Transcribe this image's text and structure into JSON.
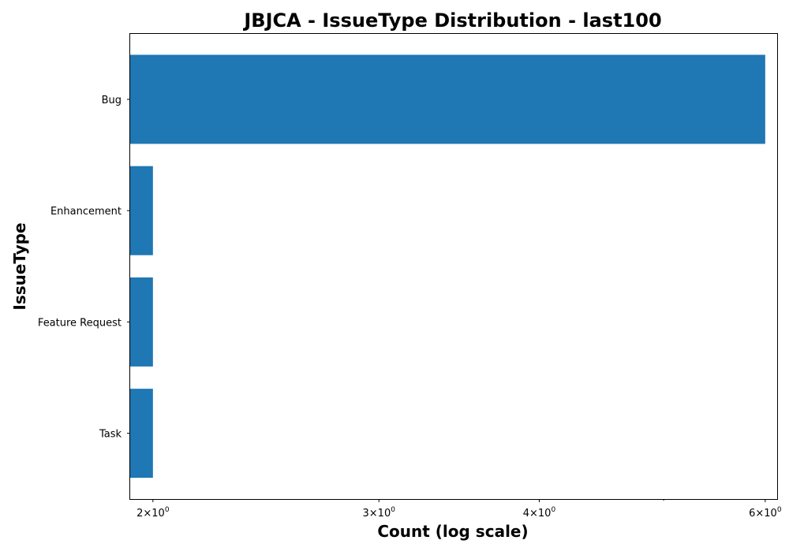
{
  "chart_data": {
    "type": "bar",
    "orientation": "horizontal",
    "title": "JBJCA - IssueType Distribution - last100",
    "xlabel": "Count (log scale)",
    "ylabel": "IssueType",
    "x_scale": "log",
    "xlim": [
      1.92,
      6.13
    ],
    "categories": [
      "Bug",
      "Enhancement",
      "Feature Request",
      "Task"
    ],
    "values": [
      6,
      2,
      2,
      2
    ],
    "x_ticks_major": [
      {
        "value": 2,
        "mantissa": "2",
        "base": "10",
        "exponent": "0"
      },
      {
        "value": 3,
        "mantissa": "3",
        "base": "10",
        "exponent": "0"
      },
      {
        "value": 4,
        "mantissa": "4",
        "base": "10",
        "exponent": "0"
      },
      {
        "value": 6,
        "mantissa": "6",
        "base": "10",
        "exponent": "0"
      }
    ],
    "x_ticks_minor": [
      5
    ],
    "grid": false,
    "legend": "none",
    "bar_color": "#1f77b4"
  }
}
